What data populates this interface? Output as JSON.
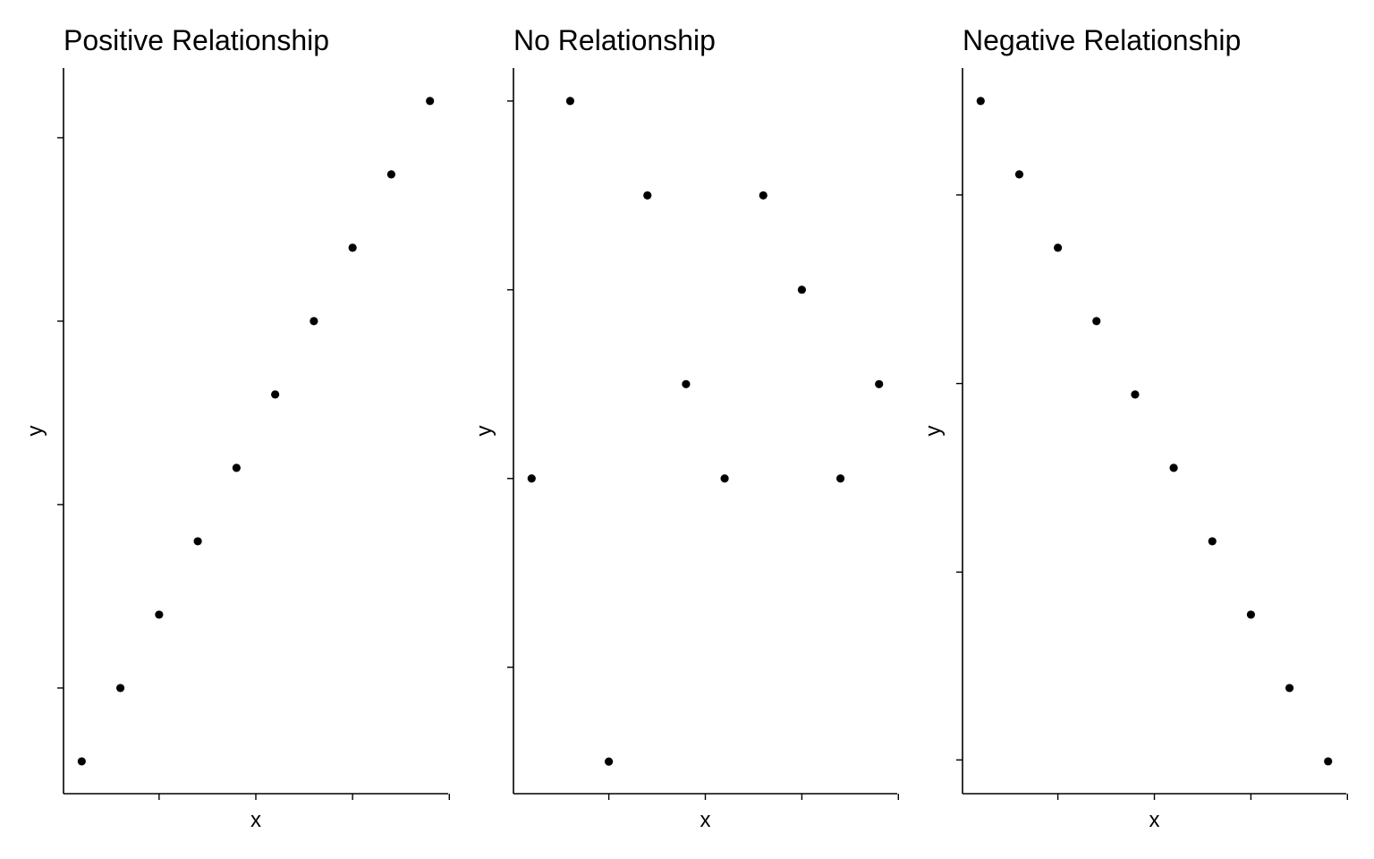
{
  "chart_data": [
    {
      "type": "scatter",
      "title": "Positive Relationship",
      "xlabel": "x",
      "ylabel": "y",
      "x_tick_labels": [],
      "y_tick_labels": [],
      "series": [
        {
          "x": [
            1,
            2,
            3,
            4,
            5,
            6,
            7,
            8,
            9,
            10
          ],
          "y": [
            1,
            2,
            3,
            4,
            5,
            6,
            7,
            8,
            9,
            10
          ]
        }
      ]
    },
    {
      "type": "scatter",
      "title": "No Relationship",
      "xlabel": "x",
      "ylabel": "y",
      "x_tick_labels": [],
      "y_tick_labels": [],
      "series": [
        {
          "x": [
            1,
            2,
            3,
            4,
            5,
            6,
            7,
            8,
            9,
            10
          ],
          "y": [
            4,
            8,
            1,
            7,
            5,
            4,
            7,
            6,
            4,
            5
          ]
        }
      ]
    },
    {
      "type": "scatter",
      "title": "Negative Relationship",
      "xlabel": "x",
      "ylabel": "y",
      "x_tick_labels": [],
      "y_tick_labels": [],
      "series": [
        {
          "x": [
            1,
            2,
            3,
            4,
            5,
            6,
            7,
            8,
            9,
            10
          ],
          "y": [
            10,
            9,
            8,
            7,
            6,
            5,
            4,
            3,
            2,
            1
          ]
        }
      ]
    }
  ]
}
